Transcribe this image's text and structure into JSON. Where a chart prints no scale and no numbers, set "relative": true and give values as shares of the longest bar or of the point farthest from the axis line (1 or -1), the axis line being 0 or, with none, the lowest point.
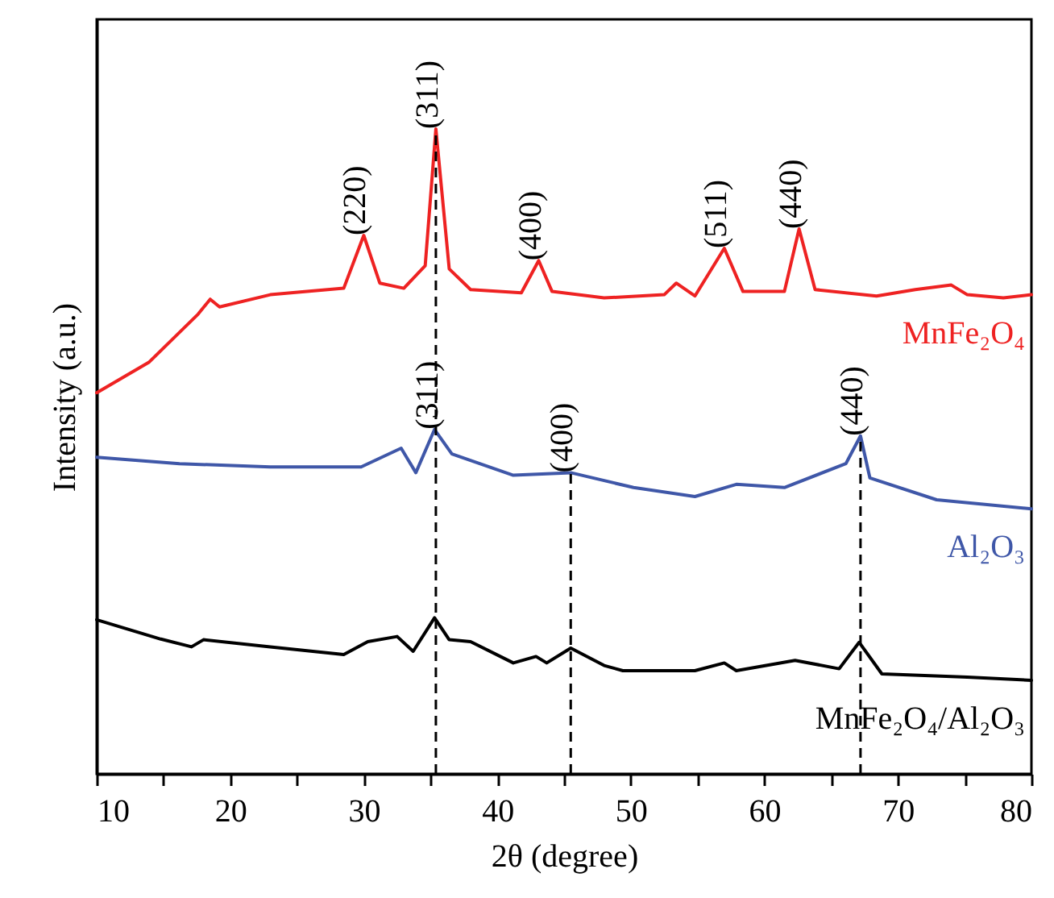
{
  "chart_data": {
    "type": "line",
    "xlabel": "2θ (degree)",
    "ylabel": "Intensity (a.u.)",
    "relative": true,
    "grid": false,
    "xlim": [
      10,
      80
    ],
    "xticks": [
      10,
      {
        "value": 15,
        "label": null
      },
      20,
      {
        "value": 25,
        "label": null
      },
      30,
      {
        "value": 35,
        "label": null
      },
      40,
      {
        "value": 45,
        "label": null
      },
      50,
      {
        "value": 55,
        "label": null
      },
      60,
      {
        "value": 65,
        "label": null
      },
      70,
      {
        "value": 75,
        "label": null
      },
      80
    ],
    "series": [
      {
        "name": "MnFe₂O₄",
        "color": "#ee2222",
        "x": [
          10,
          13.9,
          17.6,
          18.5,
          19.2,
          23.0,
          28.5,
          30.0,
          31.2,
          33.0,
          34.6,
          35.4,
          36.4,
          38.0,
          41.8,
          43.1,
          44.1,
          48.0,
          52.5,
          53.4,
          54.8,
          57.0,
          58.4,
          61.5,
          62.6,
          63.8,
          68.4,
          71.3,
          74.0,
          75.2,
          77.9,
          80
        ],
        "values": [
          0.591,
          0.638,
          0.713,
          0.736,
          0.724,
          0.743,
          0.753,
          0.835,
          0.761,
          0.753,
          0.788,
          1,
          0.783,
          0.751,
          0.746,
          0.796,
          0.748,
          0.738,
          0.743,
          0.761,
          0.741,
          0.815,
          0.748,
          0.748,
          0.845,
          0.751,
          0.741,
          0.751,
          0.758,
          0.743,
          0.738,
          0.743
        ]
      },
      {
        "name": "Al₂O₃",
        "color": "#3f57a8",
        "x": [
          10,
          16.2,
          23.0,
          29.8,
          32.8,
          33.9,
          35.3,
          36.6,
          41.2,
          45.5,
          50.2,
          54.8,
          57.9,
          61.5,
          66.1,
          67.2,
          67.9,
          72.9,
          80
        ],
        "values": [
          0.491,
          0.481,
          0.476,
          0.476,
          0.505,
          0.467,
          0.534,
          0.496,
          0.463,
          0.467,
          0.444,
          0.43,
          0.449,
          0.444,
          0.481,
          0.524,
          0.459,
          0.425,
          0.411
        ]
      },
      {
        "name": "MnFe₂O₄/Al₂O₃",
        "color": "#000000",
        "x": [
          10,
          14.8,
          17.1,
          18.0,
          23.0,
          28.5,
          30.3,
          32.5,
          33.7,
          35.3,
          36.4,
          38.0,
          41.2,
          42.9,
          43.7,
          45.5,
          48.0,
          49.4,
          54.8,
          57.0,
          57.9,
          62.3,
          65.6,
          67.1,
          68.8,
          75.2,
          80
        ],
        "values": [
          0.239,
          0.209,
          0.197,
          0.208,
          0.197,
          0.185,
          0.205,
          0.213,
          0.19,
          0.242,
          0.208,
          0.205,
          0.172,
          0.182,
          0.172,
          0.195,
          0.168,
          0.16,
          0.16,
          0.172,
          0.16,
          0.176,
          0.163,
          0.204,
          0.155,
          0.15,
          0.145
        ]
      }
    ],
    "ref_lines": [
      {
        "axis": "x",
        "value": 35.4,
        "line_style": "dashed"
      },
      {
        "axis": "x",
        "value": 45.5,
        "line_style": "dashed"
      },
      {
        "axis": "x",
        "value": 67.2,
        "line_style": "dashed"
      }
    ],
    "annotations": [
      {
        "text": "(220)",
        "x": 30.0,
        "y": 0.835
      },
      {
        "text": "(311)",
        "x": 35.4,
        "y": 1
      },
      {
        "text": "(400)",
        "x": 43.1,
        "y": 0.796
      },
      {
        "text": "(511)",
        "x": 57.0,
        "y": 0.815
      },
      {
        "text": "(440)",
        "x": 62.6,
        "y": 0.845
      },
      {
        "text": "(311)",
        "x": 35.4,
        "y": 0.534
      },
      {
        "text": "(400)",
        "x": 45.5,
        "y": 0.467
      },
      {
        "text": "(440)",
        "x": 67.2,
        "y": 0.524
      }
    ]
  }
}
